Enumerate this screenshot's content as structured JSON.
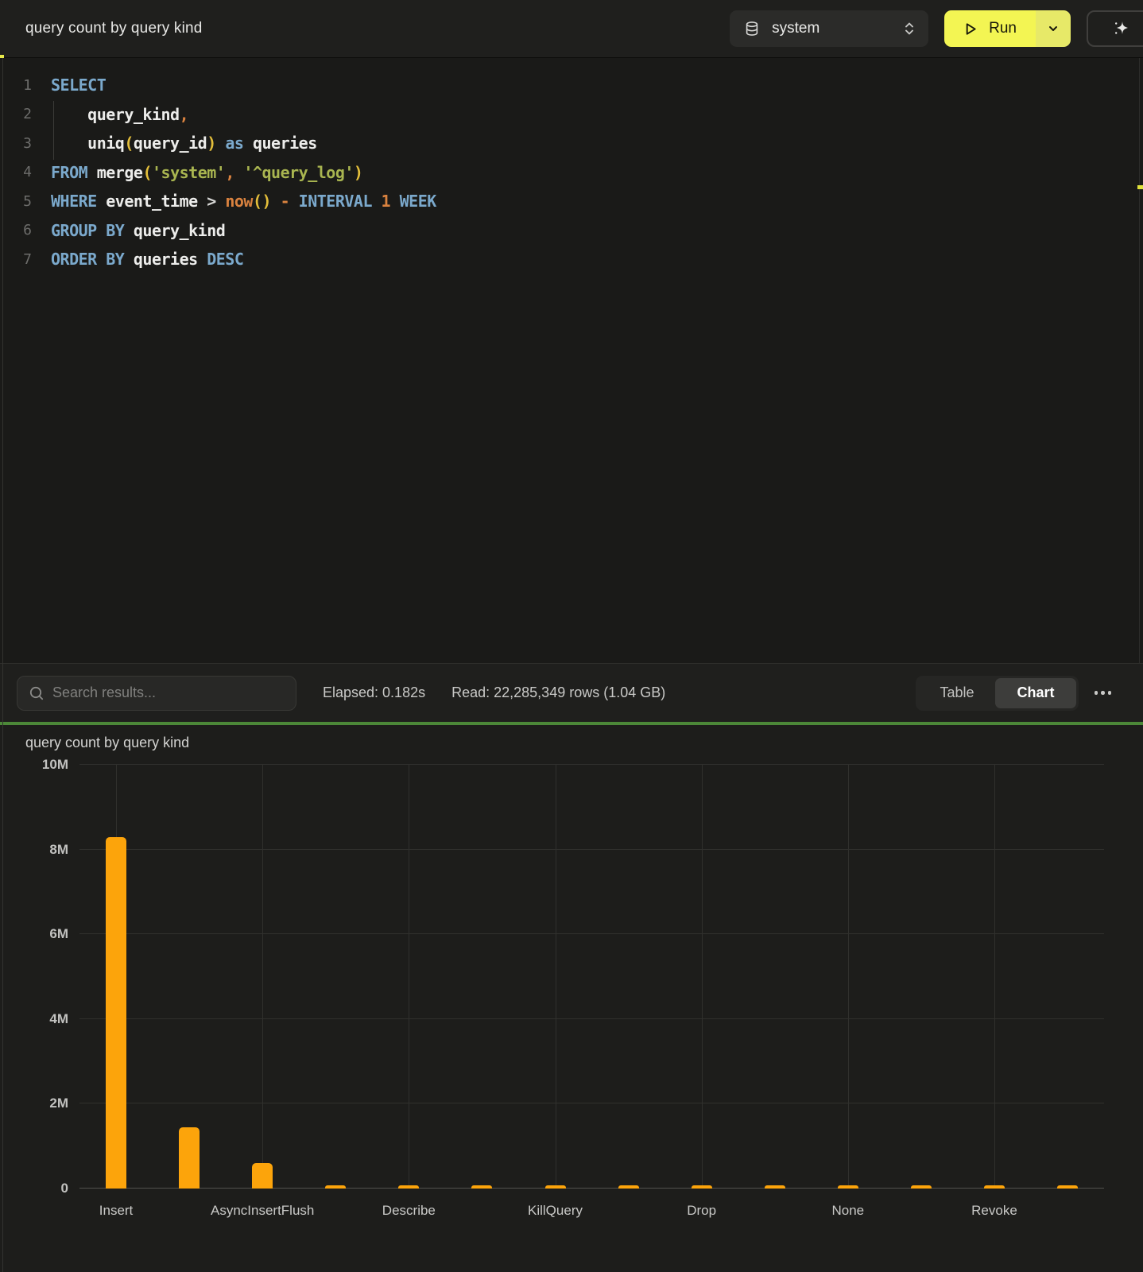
{
  "topbar": {
    "title": "query count by query kind",
    "database": "system",
    "run_label": "Run"
  },
  "editor": {
    "lines": [
      {
        "num": "1",
        "tokens": [
          [
            "k",
            "SELECT"
          ]
        ]
      },
      {
        "num": "2",
        "tokens": [
          [
            "w",
            "    "
          ],
          [
            "i",
            "query_kind"
          ],
          [
            "o",
            ","
          ]
        ]
      },
      {
        "num": "3",
        "tokens": [
          [
            "w",
            "    "
          ],
          [
            "i",
            "uniq"
          ],
          [
            "p",
            "("
          ],
          [
            "i",
            "query_id"
          ],
          [
            "p",
            ")"
          ],
          [
            "w",
            " "
          ],
          [
            "k",
            "as"
          ],
          [
            "w",
            " "
          ],
          [
            "i",
            "queries"
          ]
        ]
      },
      {
        "num": "4",
        "tokens": [
          [
            "k",
            "FROM"
          ],
          [
            "w",
            " "
          ],
          [
            "i",
            "merge"
          ],
          [
            "p",
            "("
          ],
          [
            "s",
            "'system'"
          ],
          [
            "o",
            ","
          ],
          [
            "w",
            " "
          ],
          [
            "s",
            "'^query_log'"
          ],
          [
            "p",
            ")"
          ]
        ]
      },
      {
        "num": "5",
        "tokens": [
          [
            "k",
            "WHERE"
          ],
          [
            "w",
            " "
          ],
          [
            "i",
            "event_time"
          ],
          [
            "w",
            " > "
          ],
          [
            "o",
            "now"
          ],
          [
            "p",
            "()"
          ],
          [
            "w",
            " "
          ],
          [
            "o",
            "-"
          ],
          [
            "w",
            " "
          ],
          [
            "k",
            "INTERVAL"
          ],
          [
            "w",
            " "
          ],
          [
            "o",
            "1"
          ],
          [
            "w",
            " "
          ],
          [
            "k",
            "WEEK"
          ]
        ]
      },
      {
        "num": "6",
        "tokens": [
          [
            "k",
            "GROUP BY"
          ],
          [
            "w",
            " "
          ],
          [
            "i",
            "query_kind"
          ]
        ]
      },
      {
        "num": "7",
        "tokens": [
          [
            "k",
            "ORDER BY"
          ],
          [
            "w",
            " "
          ],
          [
            "i",
            "queries"
          ],
          [
            "w",
            " "
          ],
          [
            "k",
            "DESC"
          ]
        ]
      }
    ]
  },
  "results_toolbar": {
    "search_placeholder": "Search results...",
    "elapsed": "Elapsed: 0.182s",
    "read": "Read: 22,285,349 rows (1.04 GB)",
    "table_label": "Table",
    "chart_label": "Chart",
    "active_view": "chart"
  },
  "chart": {
    "title": "query count by query kind"
  },
  "chart_data": {
    "type": "bar",
    "title": "query count by query kind",
    "categories": [
      "Insert",
      "",
      "AsyncInsertFlush",
      "",
      "Describe",
      "",
      "KillQuery",
      "",
      "Drop",
      "",
      "None",
      "",
      "Revoke",
      ""
    ],
    "values": [
      8300000,
      1450000,
      600000,
      80000,
      80000,
      75000,
      75000,
      70000,
      70000,
      70000,
      65000,
      65000,
      60000,
      55000
    ],
    "xlabel": "",
    "ylabel": "",
    "ylim": [
      0,
      10000000
    ],
    "yticks": [
      0,
      2000000,
      4000000,
      6000000,
      8000000,
      10000000
    ],
    "ytick_labels": [
      "0",
      "2M",
      "4M",
      "6M",
      "8M",
      "10M"
    ],
    "bar_color": "#FCA40B",
    "grid": true,
    "legend": false
  },
  "colors": {
    "accent_yellow": "#F3F553",
    "bar_orange": "#FCA40B",
    "divider_green": "#4C8838",
    "keyword_blue": "#7BA9CC",
    "string_olive": "#A9B550"
  }
}
